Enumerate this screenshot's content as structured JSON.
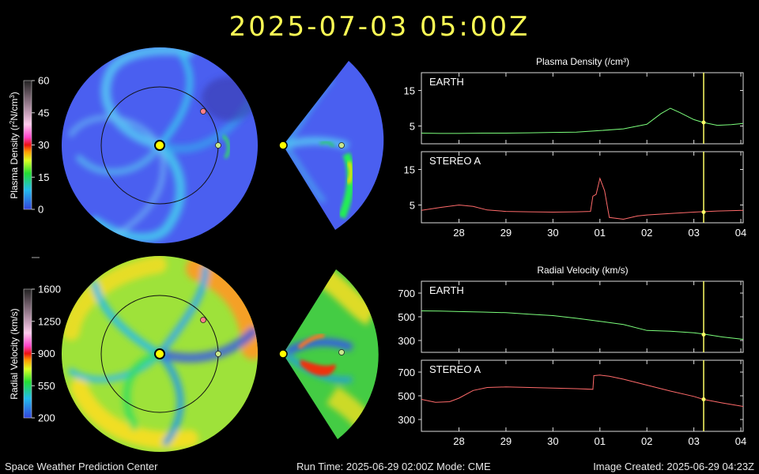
{
  "header": {
    "title": "2025-07-03  05:00Z"
  },
  "colorbars": {
    "density": {
      "label_main": "Plasma Density (r",
      "label_sup1": "2",
      "label_mid": "N/cm",
      "label_sup2": "3",
      "label_end": ")",
      "ticks": [
        "60",
        "45",
        "30",
        "15",
        "0"
      ]
    },
    "velocity": {
      "label": "Radial Velocity (km/s)",
      "ticks": [
        "1600",
        "1250",
        "900",
        "550",
        "200"
      ]
    }
  },
  "colors": {
    "earth_trace": "#7cff7c",
    "stereo_trace": "#ff6a6a",
    "time_marker": "#ffff66",
    "sun": "#ffff00",
    "earth_marker": "#c8e88c",
    "stereo_marker": "#ff7f8a"
  },
  "footer": {
    "left": "Space Weather Prediction Center",
    "mid": "Run Time: 2025-06-29 02:00Z  Mode: CME",
    "right": "Image Created: 2025-06-29 04:23Z"
  },
  "chart_data": [
    {
      "type": "line",
      "title": "Plasma Density (/cm³)",
      "panel": "EARTH",
      "x_unit": "day",
      "xticks": [
        "28",
        "29",
        "30",
        "01",
        "02",
        "03",
        "04"
      ],
      "yticks": [
        5,
        15
      ],
      "ylim": [
        0,
        20
      ],
      "current_time": "03",
      "current_value": 6,
      "series": [
        {
          "name": "EARTH",
          "x": [
            27.2,
            27.6,
            28.0,
            28.5,
            29.0,
            29.5,
            30.0,
            30.5,
            31.0,
            31.5,
            32.0,
            32.3,
            32.5,
            32.7,
            33.0,
            33.2,
            33.5,
            33.8,
            34.05
          ],
          "y": [
            3.0,
            2.9,
            2.9,
            3.0,
            3.0,
            3.1,
            3.2,
            3.3,
            3.7,
            4.2,
            5.5,
            8.5,
            10.0,
            8.8,
            6.8,
            6.0,
            5.2,
            5.4,
            5.7
          ]
        }
      ]
    },
    {
      "type": "line",
      "title": "",
      "panel": "STEREO A",
      "x_unit": "day",
      "xticks": [
        "28",
        "29",
        "30",
        "01",
        "02",
        "03",
        "04"
      ],
      "yticks": [
        5,
        15
      ],
      "ylim": [
        0,
        20
      ],
      "current_time": "03",
      "current_value": 3,
      "series": [
        {
          "name": "STEREO A",
          "x": [
            27.2,
            27.6,
            28.0,
            28.3,
            28.6,
            29.0,
            29.5,
            30.0,
            30.5,
            30.8,
            30.85,
            30.92,
            31.0,
            31.1,
            31.2,
            31.5,
            31.8,
            32.0,
            32.5,
            33.0,
            33.5,
            34.05
          ],
          "y": [
            3.5,
            4.3,
            5.0,
            4.6,
            3.6,
            3.2,
            3.1,
            3.0,
            3.1,
            3.2,
            7.5,
            8.0,
            12.5,
            9.0,
            1.5,
            1.0,
            1.9,
            2.2,
            2.6,
            3.0,
            3.3,
            3.5
          ]
        }
      ]
    },
    {
      "type": "line",
      "title": "Radial Velocity (km/s)",
      "panel": "EARTH",
      "x_unit": "day",
      "xticks": [
        "28",
        "29",
        "30",
        "01",
        "02",
        "03",
        "04"
      ],
      "yticks": [
        300,
        500,
        700
      ],
      "ylim": [
        200,
        800
      ],
      "current_time": "03",
      "current_value": 350,
      "series": [
        {
          "name": "EARTH",
          "x": [
            27.2,
            27.6,
            28.0,
            28.5,
            29.0,
            29.5,
            30.0,
            30.5,
            31.0,
            31.5,
            32.0,
            32.5,
            33.0,
            33.2,
            33.6,
            34.05
          ],
          "y": [
            550,
            548,
            544,
            540,
            535,
            522,
            510,
            487,
            462,
            435,
            385,
            378,
            365,
            355,
            330,
            310
          ]
        }
      ]
    },
    {
      "type": "line",
      "title": "",
      "panel": "STEREO A",
      "x_unit": "day",
      "xticks": [
        "28",
        "29",
        "30",
        "01",
        "02",
        "03",
        "04"
      ],
      "yticks": [
        300,
        500,
        700
      ],
      "ylim": [
        200,
        800
      ],
      "current_time": "03",
      "current_value": 470,
      "series": [
        {
          "name": "STEREO A",
          "x": [
            27.2,
            27.5,
            27.8,
            28.0,
            28.3,
            28.6,
            29.0,
            29.5,
            30.0,
            30.5,
            30.85,
            30.87,
            31.0,
            31.2,
            31.5,
            32.0,
            32.5,
            33.0,
            33.2,
            33.6,
            34.05
          ],
          "y": [
            470,
            445,
            450,
            480,
            545,
            570,
            575,
            570,
            565,
            560,
            555,
            670,
            675,
            665,
            640,
            590,
            540,
            495,
            470,
            440,
            410
          ]
        }
      ]
    }
  ]
}
